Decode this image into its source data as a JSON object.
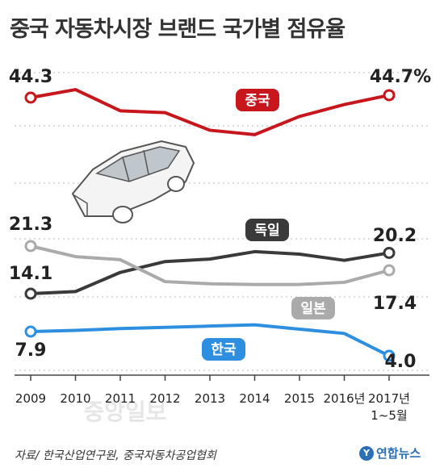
{
  "title": "중국 자동차시장 브랜드 국가별 점유율",
  "source": "자료/ 한국산업연구원, 중국자동차공업협회",
  "brand": "연합뉴스",
  "watermark": "중앙일보",
  "chart_data": {
    "type": "line",
    "categories": [
      "2009",
      "2010",
      "2011",
      "2012",
      "2013",
      "2014",
      "2015",
      "2016년",
      "2017년\n1~5월"
    ],
    "series": [
      {
        "name": "중국",
        "color": "#c8161d",
        "values": [
          44.3,
          45.6,
          42.2,
          41.9,
          39.1,
          38.4,
          41.3,
          43.2,
          44.7
        ],
        "start_label": "44.3",
        "end_label": "44.7%"
      },
      {
        "name": "독일",
        "color": "#3a3a3a",
        "values": [
          14.1,
          14.4,
          17.1,
          18.8,
          19.2,
          20.4,
          20.0,
          19.0,
          20.2
        ],
        "start_label": "14.1",
        "end_label": "20.2"
      },
      {
        "name": "일본",
        "color": "#aaaaaa",
        "values": [
          21.3,
          19.6,
          19.1,
          15.8,
          15.5,
          15.4,
          15.4,
          15.7,
          17.4
        ],
        "start_label": "21.3",
        "end_label": "17.4"
      },
      {
        "name": "한국",
        "color": "#2e8fe0",
        "values": [
          7.9,
          8.1,
          8.4,
          8.6,
          8.8,
          9.0,
          8.3,
          7.6,
          4.0
        ],
        "start_label": "7.9",
        "end_label": "4.0"
      }
    ],
    "grid": true,
    "legend": "inline labels on lines"
  }
}
